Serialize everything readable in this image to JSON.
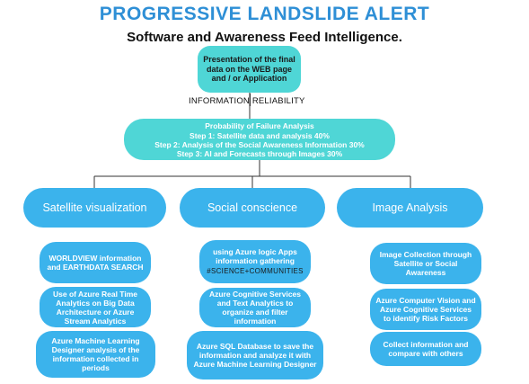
{
  "title": "PROGRESSIVE LANDSLIDE ALERT",
  "subtitle": "Software and Awareness Feed Intelligence.",
  "top_box": "Presentation of the final data on the WEB page and / or Application",
  "info_label": "INFORMATION RELIABILITY",
  "probability": {
    "heading": "Probability of Failure Analysis",
    "steps": [
      "Step 1: Satellite data and analysis 40%",
      "Step 2: Analysis of the Social Awareness Information 30%",
      "Step 3: AI and Forecasts through Images 30%"
    ]
  },
  "categories": [
    {
      "label": "Satellite visualization",
      "items": [
        "WORLDVIEW information and EARTHDATA SEARCH",
        "Use of Azure Real Time Analytics on Big Data Architecture or Azure Stream Analytics",
        "Azure Machine Learning Designer analysis of the information collected in periods"
      ]
    },
    {
      "label": "Social conscience",
      "items": [
        "using Azure logic Apps information gathering",
        "Azure Cognitive Services and Text Analytics to organize and filter information",
        "Azure SQL Database to save the information and analyze it with Azure Machine Learning Designer"
      ],
      "hashtag": "#SCIENCE+COMMUNITIES"
    },
    {
      "label": "Image Analysis",
      "items": [
        "Image Collection through Satellite or Social Awareness",
        "Azure Computer Vision and Azure Cognitive Services to identify Risk Factors",
        "Collect information and compare with others"
      ]
    }
  ],
  "colors": {
    "title": "#2e8fd6",
    "teal": "#4fd6d6",
    "blue": "#3bb3ec",
    "line": "#333333"
  }
}
